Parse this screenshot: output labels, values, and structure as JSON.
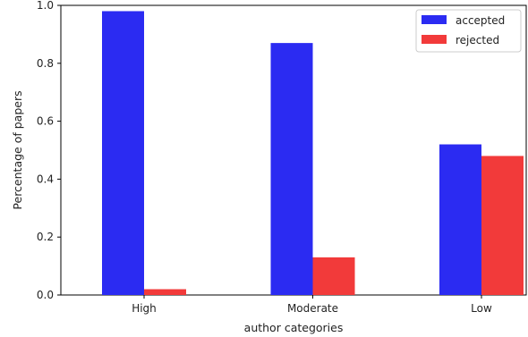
{
  "chart_data": {
    "type": "bar",
    "categories": [
      "High",
      "Moderate",
      "Low"
    ],
    "series": [
      {
        "name": "accepted",
        "color": "#2b2bf2",
        "values": [
          0.98,
          0.87,
          0.52
        ]
      },
      {
        "name": "rejected",
        "color": "#f23a3a",
        "values": [
          0.02,
          0.13,
          0.48
        ]
      }
    ],
    "xlabel": "author categories",
    "ylabel": "Percentage of papers",
    "ylim": [
      0,
      1.0
    ],
    "yticks": [
      0.0,
      0.2,
      0.4,
      0.6,
      0.8,
      1.0
    ],
    "ytick_labels": [
      "0.0",
      "0.2",
      "0.4",
      "0.6",
      "0.8",
      "1.0"
    ],
    "grid": false,
    "legend_position": "top-right"
  }
}
